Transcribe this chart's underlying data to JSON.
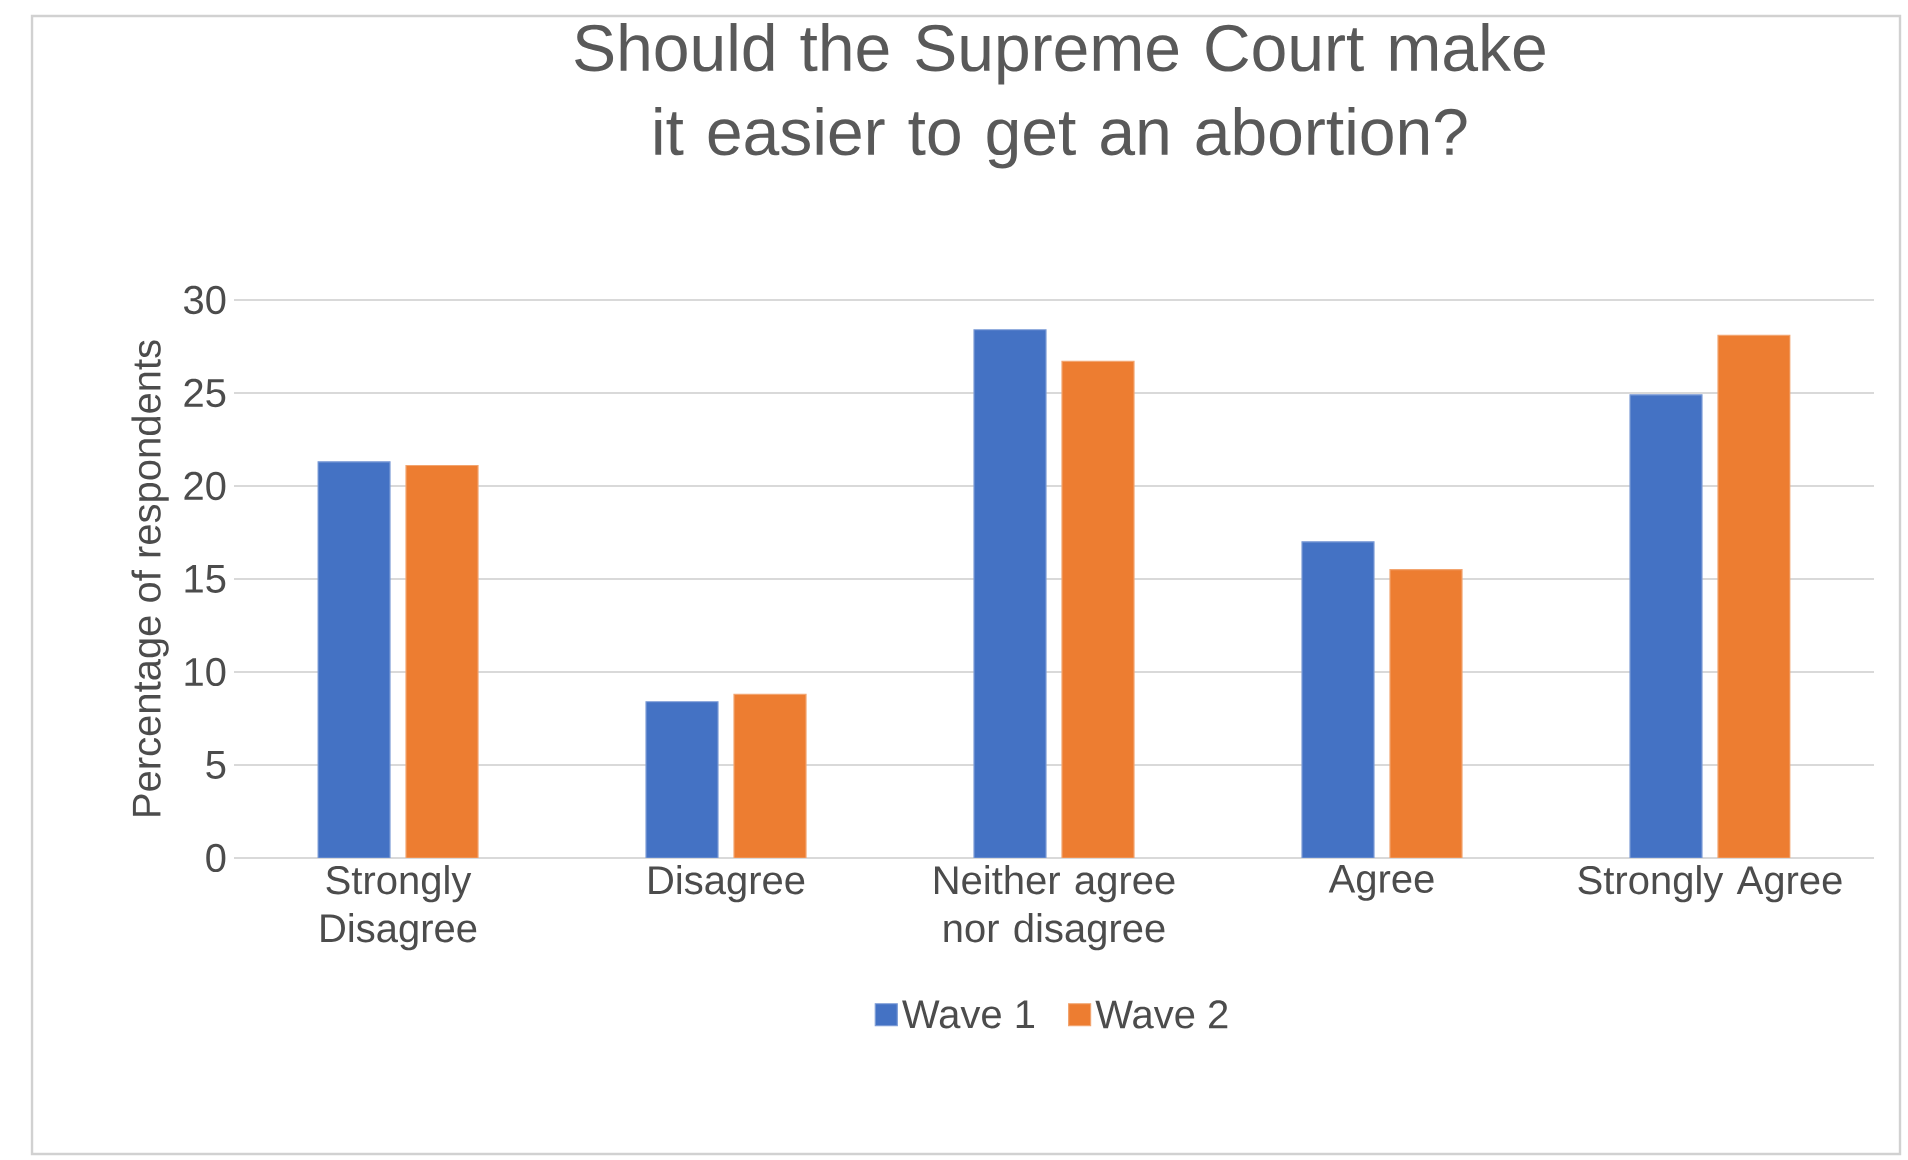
{
  "chart_data": {
    "type": "bar",
    "title": "Should the Supreme Court make it easier to get an abortion?",
    "ylabel": "Percentage of respondents",
    "categories": [
      "Strongly Disagree",
      "Disagree",
      "Neither agree nor disagree",
      "Agree",
      "Strongly Agree"
    ],
    "series": [
      {
        "name": "Wave 1",
        "color": "#4472c4",
        "values": [
          21.3,
          8.4,
          28.4,
          17.0,
          24.9
        ]
      },
      {
        "name": "Wave 2",
        "color": "#ed7d31",
        "values": [
          21.1,
          8.8,
          26.7,
          15.5,
          28.1
        ]
      }
    ],
    "ylim": [
      0,
      30
    ],
    "yticks": [
      0,
      5,
      10,
      15,
      20,
      25,
      30
    ],
    "grid": "y",
    "legend": "bottom"
  }
}
